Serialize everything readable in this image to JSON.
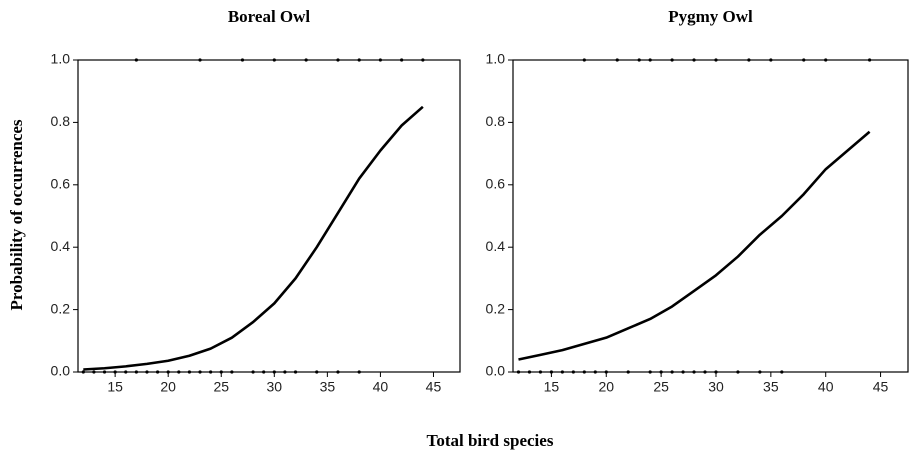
{
  "ylabel": "Probability of occurrences",
  "xlabel": "Total bird species",
  "chart_data": [
    {
      "type": "line",
      "title": "Boreal Owl",
      "series": [
        {
          "color": "#000000",
          "x": [
            12,
            14,
            16,
            18,
            20,
            22,
            24,
            26,
            28,
            30,
            32,
            34,
            36,
            38,
            40,
            42,
            44
          ],
          "values": [
            0.008,
            0.012,
            0.018,
            0.026,
            0.036,
            0.052,
            0.075,
            0.11,
            0.16,
            0.22,
            0.3,
            0.4,
            0.51,
            0.62,
            0.71,
            0.79,
            0.85
          ]
        }
      ],
      "observations": {
        "color": "#000000",
        "x": [
          12,
          13,
          14,
          15,
          16,
          17,
          18,
          19,
          20,
          21,
          22,
          23,
          24,
          25,
          26,
          28,
          29,
          30,
          31,
          32,
          34,
          36,
          38,
          17,
          23,
          27,
          30,
          33,
          36,
          38,
          40,
          42,
          44
        ],
        "values": [
          0,
          0,
          0,
          0,
          0,
          0,
          0,
          0,
          0,
          0,
          0,
          0,
          0,
          0,
          0,
          0,
          0,
          0,
          0,
          0,
          0,
          0,
          0,
          1,
          1,
          1,
          1,
          1,
          1,
          1,
          1,
          1,
          1
        ]
      },
      "xlim": [
        11.5,
        47.5
      ],
      "xticks": [
        15,
        20,
        25,
        30,
        35,
        40,
        45
      ],
      "ylim": [
        0,
        1
      ],
      "yticks": [
        {
          "value": 0,
          "label": "0.0"
        },
        0.2,
        0.4,
        0.6,
        0.8,
        {
          "value": 1,
          "label": "1.0"
        }
      ]
    },
    {
      "type": "line",
      "title": "Pygmy Owl",
      "series": [
        {
          "color": "#000000",
          "x": [
            12,
            14,
            16,
            18,
            20,
            22,
            24,
            26,
            28,
            30,
            32,
            34,
            36,
            38,
            40,
            42,
            44
          ],
          "values": [
            0.04,
            0.055,
            0.07,
            0.09,
            0.11,
            0.14,
            0.17,
            0.21,
            0.26,
            0.31,
            0.37,
            0.44,
            0.5,
            0.57,
            0.65,
            0.71,
            0.77
          ]
        }
      ],
      "observations": {
        "color": "#000000",
        "x": [
          12,
          13,
          14,
          15,
          16,
          17,
          18,
          19,
          20,
          22,
          24,
          25,
          26,
          27,
          28,
          29,
          30,
          32,
          34,
          36,
          18,
          21,
          23,
          24,
          26,
          28,
          30,
          33,
          35,
          38,
          40,
          44
        ],
        "values": [
          0,
          0,
          0,
          0,
          0,
          0,
          0,
          0,
          0,
          0,
          0,
          0,
          0,
          0,
          0,
          0,
          0,
          0,
          0,
          0,
          1,
          1,
          1,
          1,
          1,
          1,
          1,
          1,
          1,
          1,
          1,
          1
        ]
      },
      "xlim": [
        11.5,
        47.5
      ],
      "xticks": [
        15,
        20,
        25,
        30,
        35,
        40,
        45
      ],
      "ylim": [
        0,
        1
      ],
      "yticks": [
        {
          "value": 0,
          "label": "0.0"
        },
        0.2,
        0.4,
        0.6,
        0.8,
        {
          "value": 1,
          "label": "1.0"
        }
      ]
    }
  ]
}
